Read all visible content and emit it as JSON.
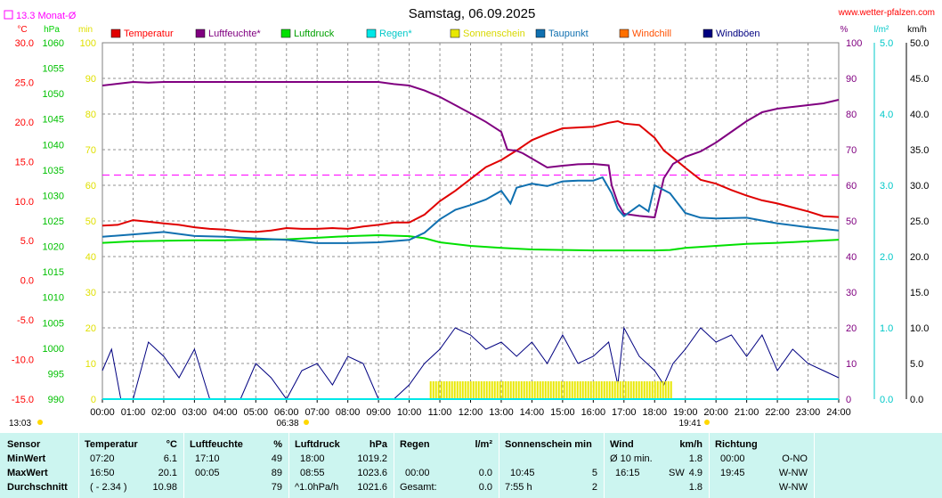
{
  "header": {
    "title": "Samstag, 06.09.2025",
    "site": "www.wetter-pfalzen.com",
    "monthly_avg_label": "13.3 Monat-Ø"
  },
  "axes": {
    "temp_unit": "°C",
    "pressure_unit": "hPa",
    "min_unit": "min",
    "humidity_unit": "%",
    "rain_unit": "l/m²",
    "wind_unit": "km/h"
  },
  "sun": {
    "sunrise": "06:38",
    "sunset": "19:41",
    "daylength": "13:03"
  },
  "colors": {
    "temperature": "#e00000",
    "humidity": "#800080",
    "pressure": "#00e000",
    "rain": "#00e8e8",
    "sunshine": "#e8e800",
    "dewpoint": "#1070b0",
    "windchill": "#ff7000",
    "gust": "#000080",
    "monthly_avg": "#ff00ff"
  },
  "chart_data": {
    "type": "line",
    "title": "Samstag, 06.09.2025",
    "x_ticks": [
      "00:00",
      "01:00",
      "02:00",
      "03:00",
      "04:00",
      "05:00",
      "06:00",
      "07:00",
      "08:00",
      "09:00",
      "10:00",
      "11:00",
      "12:00",
      "13:00",
      "14:00",
      "15:00",
      "16:00",
      "17:00",
      "18:00",
      "19:00",
      "20:00",
      "21:00",
      "22:00",
      "23:00",
      "24:00"
    ],
    "xlim_hours": [
      0,
      24
    ],
    "grid": true,
    "legend": [
      "Temperatur",
      "Luftfeuchte*",
      "Luftdruck",
      "Regen*",
      "Sonnenschein",
      "Taupunkt",
      "Windchill",
      "Windböen"
    ],
    "legend_placement": "top",
    "y_axes": {
      "temperature": {
        "label": "°C",
        "ylim": [
          -15,
          30
        ],
        "ticks": [
          "30.0",
          "25.0",
          "20.0",
          "15.0",
          "10.0",
          "5.0",
          "0.0",
          "-5.0",
          "-10.0",
          "-15.0"
        ]
      },
      "pressure": {
        "label": "hPa",
        "ylim": [
          990,
          1060
        ],
        "ticks": [
          "1060",
          "1055",
          "1050",
          "1045",
          "1040",
          "1035",
          "1030",
          "1025",
          "1020",
          "1015",
          "1010",
          "1005",
          "1000",
          "995",
          "990"
        ]
      },
      "sunshine_min": {
        "label": "min",
        "ylim": [
          0,
          100
        ],
        "ticks": [
          "100",
          "90",
          "80",
          "70",
          "60",
          "50",
          "40",
          "30",
          "20",
          "10",
          "0"
        ]
      },
      "humidity": {
        "label": "%",
        "ylim": [
          0,
          100
        ],
        "ticks": [
          "100",
          "90",
          "80",
          "70",
          "60",
          "50",
          "40",
          "30",
          "20",
          "10",
          "0"
        ]
      },
      "rain": {
        "label": "l/m²",
        "ylim": [
          0,
          5
        ],
        "ticks": [
          "5.0",
          "4.0",
          "3.0",
          "2.0",
          "1.0",
          "0.0"
        ]
      },
      "wind": {
        "label": "km/h",
        "ylim": [
          0,
          50
        ],
        "ticks": [
          "50.0",
          "45.0",
          "40.0",
          "35.0",
          "30.0",
          "25.0",
          "20.0",
          "15.0",
          "10.0",
          "5.0",
          "0.0"
        ]
      }
    },
    "monthly_avg_temperature": 13.3,
    "series": [
      {
        "name": "Temperatur",
        "axis": "temperature",
        "x": [
          0,
          0.5,
          1,
          1.5,
          2,
          2.5,
          3,
          3.5,
          4,
          4.5,
          5,
          5.5,
          6,
          6.5,
          7,
          7.5,
          8,
          8.5,
          9,
          9.5,
          10,
          10.5,
          11,
          11.5,
          12,
          12.5,
          13,
          13.5,
          14,
          14.5,
          15,
          15.5,
          16,
          16.5,
          16.8,
          17,
          17.5,
          18,
          18.3,
          18.6,
          19,
          19.5,
          20,
          20.5,
          21,
          21.5,
          22,
          22.5,
          23,
          23.5,
          24
        ],
        "y": [
          6.9,
          7.0,
          7.6,
          7.4,
          7.2,
          7.0,
          6.7,
          6.5,
          6.4,
          6.2,
          6.1,
          6.3,
          6.6,
          6.5,
          6.5,
          6.6,
          6.5,
          6.8,
          7.0,
          7.3,
          7.3,
          8.3,
          10.0,
          11.3,
          12.8,
          14.3,
          15.2,
          16.4,
          17.7,
          18.5,
          19.2,
          19.3,
          19.4,
          19.9,
          20.1,
          19.8,
          19.6,
          18.0,
          16.4,
          15.5,
          14.2,
          12.7,
          12.2,
          11.4,
          10.7,
          10.1,
          9.7,
          9.2,
          8.7,
          8.1,
          8.0
        ]
      },
      {
        "name": "Luftfeuchte*",
        "axis": "humidity",
        "x": [
          0,
          0.5,
          1,
          1.5,
          2,
          3,
          4,
          5,
          6,
          7,
          8,
          9,
          9.5,
          10,
          10.5,
          11,
          11.5,
          12,
          12.5,
          13,
          13.2,
          13.5,
          13.7,
          14,
          14.5,
          15,
          15.5,
          16,
          16.5,
          16.6,
          16.8,
          17,
          17.5,
          18,
          18.3,
          18.6,
          19,
          19.5,
          20,
          20.5,
          21,
          21.5,
          22,
          22.5,
          23,
          23.5,
          24
        ],
        "y": [
          88,
          88.5,
          89,
          88.8,
          89,
          89,
          89,
          89,
          89,
          89,
          89,
          89,
          88.4,
          88,
          86.6,
          84.8,
          82.5,
          80.2,
          77.8,
          75,
          70,
          69.7,
          69,
          67.5,
          65,
          65.5,
          65.9,
          66,
          65.6,
          60,
          55,
          52,
          51.4,
          51,
          62,
          66,
          68,
          69.5,
          72,
          75,
          78,
          80.5,
          81.5,
          82,
          82.5,
          83,
          84
        ]
      },
      {
        "name": "Luftdruck",
        "axis": "pressure",
        "x": [
          0,
          1,
          2,
          3,
          4,
          5,
          6,
          7,
          8,
          9,
          10,
          10.5,
          11,
          12,
          13,
          14,
          15,
          16,
          17,
          18,
          18.5,
          19,
          20,
          21,
          22,
          23,
          24
        ],
        "y": [
          1020.7,
          1021.0,
          1021.1,
          1021.2,
          1021.2,
          1021.3,
          1021.4,
          1021.7,
          1022.0,
          1022.2,
          1022.0,
          1021.6,
          1020.8,
          1020.1,
          1019.7,
          1019.4,
          1019.3,
          1019.2,
          1019.2,
          1019.2,
          1019.3,
          1019.7,
          1020.1,
          1020.5,
          1020.7,
          1021.0,
          1021.3
        ]
      },
      {
        "name": "Taupunkt",
        "axis": "temperature",
        "x": [
          0,
          1,
          2,
          3,
          4,
          5,
          6,
          7,
          8,
          9,
          10,
          10.5,
          11,
          11.5,
          12,
          12.5,
          13,
          13.3,
          13.5,
          14,
          14.5,
          15,
          15.5,
          16,
          16.3,
          16.6,
          16.8,
          17,
          17.5,
          17.8,
          18,
          18.5,
          19,
          19.5,
          20,
          21,
          22,
          23,
          24
        ],
        "y": [
          5.5,
          5.8,
          6.1,
          5.6,
          5.5,
          5.3,
          5.1,
          4.7,
          4.7,
          4.8,
          5.1,
          6.0,
          7.7,
          8.9,
          9.5,
          10.2,
          11.3,
          9.7,
          11.7,
          12.2,
          11.9,
          12.5,
          12.6,
          12.6,
          13.0,
          11.0,
          9.0,
          8.1,
          9.5,
          8.7,
          12.0,
          11.0,
          8.5,
          7.9,
          7.8,
          7.9,
          7.2,
          6.7,
          6.3
        ]
      },
      {
        "name": "Windböen",
        "axis": "wind",
        "x": [
          0,
          0.3,
          0.6,
          1,
          1.5,
          2,
          2.5,
          3,
          3.5,
          4,
          4.5,
          5,
          5.5,
          6,
          6.5,
          7,
          7.5,
          8,
          8.5,
          9,
          9.5,
          10,
          10.5,
          11,
          11.5,
          12,
          12.5,
          13,
          13.5,
          14,
          14.5,
          15,
          15.5,
          16,
          16.5,
          16.8,
          17,
          17.5,
          18,
          18.3,
          18.6,
          19,
          19.5,
          20,
          20.5,
          21,
          21.5,
          22,
          22.5,
          23,
          23.5,
          24
        ],
        "y": [
          4,
          7,
          0,
          0,
          8,
          6,
          3,
          7,
          0,
          0,
          0,
          5,
          3,
          0,
          4,
          5,
          2,
          6,
          5,
          0,
          0,
          2,
          5,
          7,
          10,
          9,
          7,
          8,
          6,
          8,
          5,
          9,
          5,
          6,
          8,
          2,
          10,
          6,
          4,
          2,
          5,
          7,
          10,
          8,
          9,
          6,
          9,
          4,
          7,
          5,
          4,
          3
        ]
      },
      {
        "name": "Sonnenschein",
        "axis": "sunshine_min",
        "x": [
          10.7,
          11.0,
          11.2,
          12,
          13,
          14,
          15,
          16,
          17,
          18,
          18.3,
          18.6
        ],
        "y": [
          5,
          5,
          5,
          5,
          5,
          5,
          5,
          5,
          5,
          5,
          5,
          5
        ]
      },
      {
        "name": "Regen*",
        "axis": "rain",
        "x": [
          0,
          24
        ],
        "y": [
          0,
          0
        ]
      },
      {
        "name": "Windchill",
        "axis": "temperature",
        "x": [],
        "y": []
      }
    ]
  },
  "stats": {
    "headers": {
      "sensor": "Sensor",
      "temperature": "Temperatur",
      "temperature_unit": "°C",
      "humidity": "Luftfeuchte",
      "humidity_unit": "%",
      "pressure": "Luftdruck",
      "pressure_unit": "hPa",
      "rain": "Regen",
      "rain_unit": "l/m²",
      "sunshine": "Sonnenschein min",
      "wind": "Wind",
      "wind_unit": "km/h",
      "direction": "Richtung"
    },
    "rows": [
      {
        "label": "MinWert",
        "t_time": "07:20",
        "t_val": "6.1",
        "h_time": "17:10",
        "h_val": "49",
        "p_time": "18:00",
        "p_val": "1019.2",
        "r_time": "",
        "r_val": "",
        "s_time": "",
        "s_val": "",
        "w_time": "Ø 10 min.",
        "w_dir": "",
        "w_val": "1.8",
        "d_time": "00:00",
        "d_val": "O-NO"
      },
      {
        "label": "MaxWert",
        "t_time": "16:50",
        "t_val": "20.1",
        "h_time": "00:05",
        "h_val": "89",
        "p_time": "08:55",
        "p_val": "1023.6",
        "r_time": "00:00",
        "r_val": "0.0",
        "s_time": "10:45",
        "s_val": "5",
        "w_time": "16:15",
        "w_dir": "SW",
        "w_val": "4.9",
        "d_time": "19:45",
        "d_val": "W-NW"
      },
      {
        "label": "Durchschnitt",
        "t_time": "( - 2.34 )",
        "t_val": "10.98",
        "h_time": "",
        "h_val": "79",
        "p_time": "^1.0hPa/h",
        "p_val": "1021.6",
        "r_time": "Gesamt:",
        "r_val": "0.0",
        "s_time": "7:55 h",
        "s_val": "2",
        "w_time": "",
        "w_dir": "",
        "w_val": "1.8",
        "d_time": "",
        "d_val": "W-NW"
      }
    ]
  }
}
